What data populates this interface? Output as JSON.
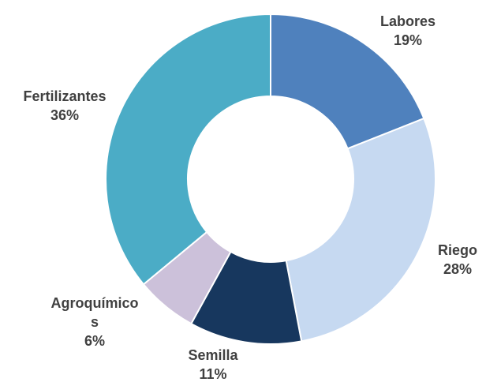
{
  "chart_data": {
    "type": "donut",
    "categories": [
      "Labores",
      "Riego",
      "Semilla",
      "Agroquímicos",
      "Fertilizantes"
    ],
    "values": [
      19,
      28,
      11,
      6,
      36
    ],
    "value_labels": [
      "19%",
      "28%",
      "11%",
      "6%",
      "36%"
    ],
    "colors": [
      "#4f81bd",
      "#c6d9f1",
      "#17375e",
      "#ccc1da",
      "#4bacc6"
    ]
  }
}
